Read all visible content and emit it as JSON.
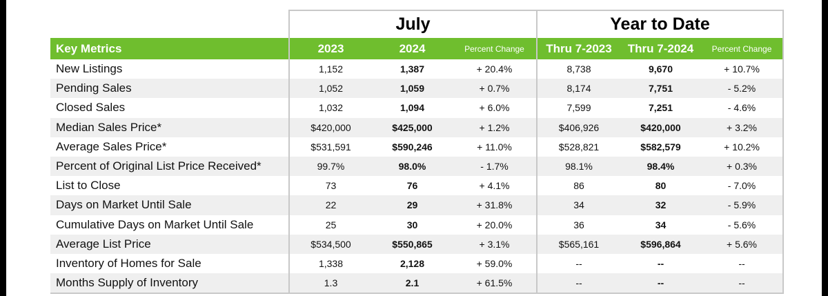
{
  "groups": {
    "july": "July",
    "ytd": "Year to Date"
  },
  "header": {
    "label": "Key Metrics",
    "col_2023": "2023",
    "col_2024": "2024",
    "col_pct": "Percent Change",
    "col_thru_2023": "Thru 7-2023",
    "col_thru_2024": "Thru 7-2024",
    "col_ytd_pct": "Percent Change"
  },
  "rows": [
    {
      "label": "New Listings",
      "v2023": "1,152",
      "v2024": "1,387",
      "pct": "+ 20.4%",
      "ytd2023": "8,738",
      "ytd2024": "9,670",
      "ytdpct": "+ 10.7%"
    },
    {
      "label": "Pending Sales",
      "v2023": "1,052",
      "v2024": "1,059",
      "pct": "+ 0.7%",
      "ytd2023": "8,174",
      "ytd2024": "7,751",
      "ytdpct": "- 5.2%"
    },
    {
      "label": "Closed Sales",
      "v2023": "1,032",
      "v2024": "1,094",
      "pct": "+ 6.0%",
      "ytd2023": "7,599",
      "ytd2024": "7,251",
      "ytdpct": "- 4.6%"
    },
    {
      "label": "Median Sales Price*",
      "v2023": "$420,000",
      "v2024": "$425,000",
      "pct": "+ 1.2%",
      "ytd2023": "$406,926",
      "ytd2024": "$420,000",
      "ytdpct": "+ 3.2%"
    },
    {
      "label": "Average Sales Price*",
      "v2023": "$531,591",
      "v2024": "$590,246",
      "pct": "+ 11.0%",
      "ytd2023": "$528,821",
      "ytd2024": "$582,579",
      "ytdpct": "+ 10.2%"
    },
    {
      "label": "Percent of Original List Price Received*",
      "v2023": "99.7%",
      "v2024": "98.0%",
      "pct": "- 1.7%",
      "ytd2023": "98.1%",
      "ytd2024": "98.4%",
      "ytdpct": "+ 0.3%"
    },
    {
      "label": "List to Close",
      "v2023": "73",
      "v2024": "76",
      "pct": "+ 4.1%",
      "ytd2023": "86",
      "ytd2024": "80",
      "ytdpct": "- 7.0%"
    },
    {
      "label": "Days on Market Until Sale",
      "v2023": "22",
      "v2024": "29",
      "pct": "+ 31.8%",
      "ytd2023": "34",
      "ytd2024": "32",
      "ytdpct": "- 5.9%"
    },
    {
      "label": "Cumulative Days on Market Until Sale",
      "v2023": "25",
      "v2024": "30",
      "pct": "+ 20.0%",
      "ytd2023": "36",
      "ytd2024": "34",
      "ytdpct": "- 5.6%"
    },
    {
      "label": "Average List Price",
      "v2023": "$534,500",
      "v2024": "$550,865",
      "pct": "+ 3.1%",
      "ytd2023": "$565,161",
      "ytd2024": "$596,864",
      "ytdpct": "+ 5.6%"
    },
    {
      "label": "Inventory of Homes for Sale",
      "v2023": "1,338",
      "v2024": "2,128",
      "pct": "+ 59.0%",
      "ytd2023": "--",
      "ytd2024": "--",
      "ytdpct": "--"
    },
    {
      "label": "Months Supply of Inventory",
      "v2023": "1.3",
      "v2024": "2.1",
      "pct": "+ 61.5%",
      "ytd2023": "--",
      "ytd2024": "--",
      "ytdpct": "--"
    }
  ],
  "colors": {
    "header_green": "#6fbe2e",
    "stripe": "#efefef",
    "border": "#c8c8c8"
  }
}
